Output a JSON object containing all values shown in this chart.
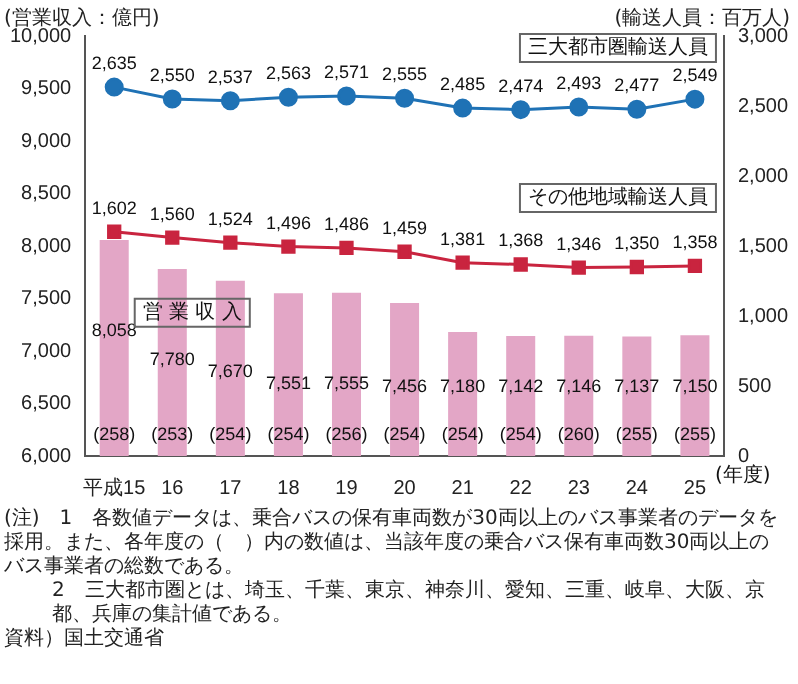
{
  "chart_data": {
    "type": "bar",
    "categories": [
      "平成15",
      "16",
      "17",
      "18",
      "19",
      "20",
      "21",
      "22",
      "23",
      "24",
      "25"
    ],
    "xlabel": "(年度)",
    "ylabel": "(営業収入：億円)",
    "y2label": "(輸送人員：百万人)",
    "series": [
      {
        "name": "営 業 収 入",
        "color": "#e3a6c6",
        "values": [
          8058,
          7780,
          7670,
          7551,
          7555,
          7456,
          7180,
          7142,
          7146,
          7137,
          7150
        ],
        "value_labels": [
          "8,058",
          "7,780",
          "7,670",
          "7,551",
          "7,555",
          "7,456",
          "7,180",
          "7,142",
          "7,146",
          "7,137",
          "7,150"
        ]
      },
      {
        "name": "三大都市圏輸送人員",
        "type": "line",
        "axis": "y2",
        "marker": "circle",
        "color": "#1f72b5",
        "values": [
          2635,
          2550,
          2537,
          2563,
          2571,
          2555,
          2485,
          2474,
          2493,
          2477,
          2549
        ],
        "value_labels": [
          "2,635",
          "2,550",
          "2,537",
          "2,563",
          "2,571",
          "2,555",
          "2,485",
          "2,474",
          "2,493",
          "2,477",
          "2,549"
        ]
      },
      {
        "name": "その他地域輸送人員",
        "type": "line",
        "axis": "y2",
        "marker": "square",
        "color": "#c9243f",
        "values": [
          1602,
          1560,
          1524,
          1496,
          1486,
          1459,
          1381,
          1368,
          1346,
          1350,
          1358
        ],
        "value_labels": [
          "1,602",
          "1,560",
          "1,524",
          "1,496",
          "1,486",
          "1,459",
          "1,381",
          "1,368",
          "1,346",
          "1,350",
          "1,358"
        ]
      }
    ],
    "ylim": [
      6000,
      10000
    ],
    "yticks": [
      {
        "value": 6000,
        "label": "6,000"
      },
      {
        "value": 6500,
        "label": "6,500"
      },
      {
        "value": 7000,
        "label": "7,000"
      },
      {
        "value": 7500,
        "label": "7,500"
      },
      {
        "value": 8000,
        "label": "8,000"
      },
      {
        "value": 8500,
        "label": "8,500"
      },
      {
        "value": 9000,
        "label": "9,000"
      },
      {
        "value": 9500,
        "label": "9,500"
      },
      {
        "value": 10000,
        "label": "10,000"
      }
    ],
    "y2lim": [
      0,
      3000
    ],
    "y2ticks": [
      0,
      500,
      {
        "value": 1000,
        "label": "1,000"
      },
      {
        "value": 1500,
        "label": "1,500"
      },
      {
        "value": 2000,
        "label": "2,000"
      },
      {
        "value": 2500,
        "label": "2,500"
      },
      {
        "value": 3000,
        "label": "3,000"
      }
    ],
    "legend": false,
    "grid": false,
    "annotations": [
      "(258)",
      "(253)",
      "(254)",
      "(254)",
      "(256)",
      "(254)",
      "(254)",
      "(254)",
      "(260)",
      "(255)",
      "(255)",
      "(注)　1　各数値データは、乗合バスの保有車両数が30両以上のバス事業者のデータを採用。また、各年度の（　）内の数値は、当該年度の乗合バス保有車両数30両以上のバス事業者の総数である。",
      "2　三大都市圏とは、埼玉、千葉、東京、神奈川、愛知、三重、岐阜、大阪、京都、兵庫の集計値である。",
      "資料）国土交通省"
    ]
  }
}
